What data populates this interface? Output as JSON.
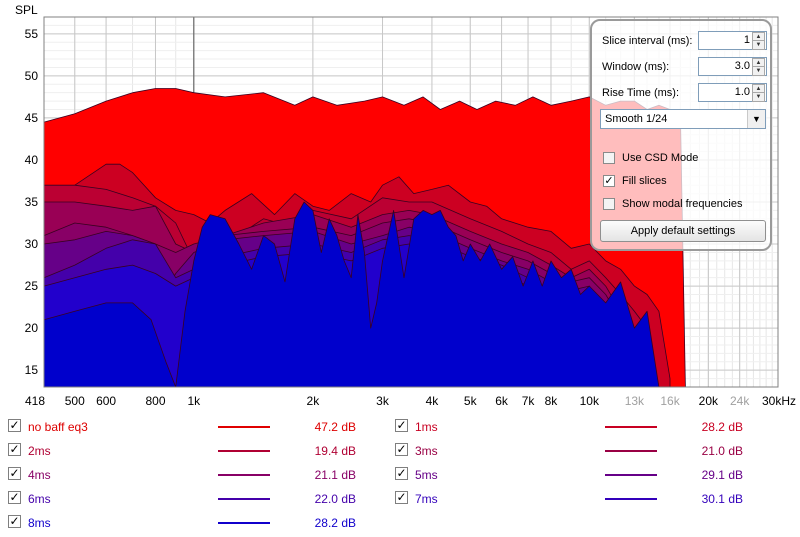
{
  "chart_data": {
    "type": "area",
    "ylabel": "SPL",
    "ylim": [
      13,
      57
    ],
    "yticks": [
      15,
      20,
      25,
      30,
      35,
      40,
      45,
      50,
      55
    ],
    "xlim": [
      418,
      30000
    ],
    "x_scale": "log",
    "xticks": [
      {
        "v": 418,
        "label": "418",
        "major": true
      },
      {
        "v": 500,
        "label": "500",
        "major": true
      },
      {
        "v": 600,
        "label": "600",
        "major": true
      },
      {
        "v": 800,
        "label": "800",
        "major": true
      },
      {
        "v": 1000,
        "label": "1k",
        "major": true
      },
      {
        "v": 2000,
        "label": "2k",
        "major": true
      },
      {
        "v": 3000,
        "label": "3k",
        "major": true
      },
      {
        "v": 4000,
        "label": "4k",
        "major": true
      },
      {
        "v": 5000,
        "label": "5k",
        "major": true
      },
      {
        "v": 6000,
        "label": "6k",
        "major": true
      },
      {
        "v": 7000,
        "label": "7k",
        "major": true
      },
      {
        "v": 8000,
        "label": "8k",
        "major": true
      },
      {
        "v": 10000,
        "label": "10k",
        "major": true
      },
      {
        "v": 13000,
        "label": "13k",
        "major": false
      },
      {
        "v": 16000,
        "label": "16k",
        "major": false
      },
      {
        "v": 20000,
        "label": "20k",
        "major": true
      },
      {
        "v": 24000,
        "label": "24k",
        "major": false
      },
      {
        "v": 30000,
        "label": "30kHz",
        "major": true
      }
    ],
    "grid": true,
    "series": [
      {
        "name": "no baff eq3",
        "color": "#ff0000",
        "x": [
          418,
          500,
          600,
          700,
          800,
          900,
          1000,
          1200,
          1500,
          1800,
          2000,
          2300,
          2700,
          3000,
          3400,
          3800,
          4200,
          4700,
          5200,
          5800,
          6500,
          7200,
          8000,
          9000,
          10000,
          11000,
          12000,
          13000,
          14000,
          15000,
          16000,
          17000,
          17500
        ],
        "y": [
          44.5,
          45.5,
          47,
          48,
          48.5,
          48.5,
          48,
          47.5,
          48,
          46.5,
          47.5,
          46.5,
          47,
          47.5,
          46.5,
          47.5,
          46,
          47,
          46,
          47,
          46.5,
          47.5,
          46.5,
          47,
          47.5,
          46.5,
          47,
          47,
          46,
          46.5,
          46,
          45.5,
          13
        ]
      },
      {
        "name": "1ms",
        "color": "#cc0022",
        "x": [
          418,
          500,
          600,
          650,
          700,
          800,
          900,
          1000,
          1100,
          1200,
          1400,
          1600,
          1800,
          2000,
          2200,
          2500,
          2800,
          3000,
          3300,
          3600,
          4000,
          4400,
          5000,
          5500,
          6000,
          7000,
          8000,
          9000,
          10000,
          11000,
          12000,
          13000,
          14000,
          15000,
          16000
        ],
        "y": [
          36,
          37,
          39.5,
          39.5,
          38.5,
          35.5,
          34,
          33.5,
          32.5,
          34,
          36,
          33.5,
          36,
          34.5,
          34,
          36,
          35,
          37,
          38,
          36,
          36.5,
          37,
          35,
          34.5,
          33,
          32,
          31.5,
          29.5,
          30,
          28,
          27,
          25,
          24,
          22,
          14
        ]
      },
      {
        "name": "2ms",
        "color": "#bb0033",
        "x": [
          418,
          500,
          600,
          700,
          800,
          900,
          1000,
          1200,
          1500,
          1800,
          2000,
          2500,
          3000,
          3500,
          4000,
          5000,
          6000,
          7000,
          8000,
          9000,
          10000,
          11000,
          12000,
          13000,
          14000,
          15000
        ],
        "y": [
          37,
          37,
          36.5,
          35.5,
          34.5,
          32.5,
          28,
          30,
          33,
          32,
          34,
          33,
          35.5,
          35,
          35,
          33,
          31.5,
          30,
          29,
          27,
          28,
          26,
          24,
          22,
          20,
          13
        ]
      },
      {
        "name": "3ms",
        "color": "#990055",
        "x": [
          418,
          500,
          600,
          700,
          800,
          900,
          1000,
          1200,
          1500,
          2000,
          2500,
          3000,
          3500,
          4000,
          5000,
          6000,
          7000,
          8000,
          9000,
          10000,
          11000,
          12000,
          13000,
          14000
        ],
        "y": [
          35,
          35,
          34.5,
          34,
          34.5,
          30,
          29,
          31,
          32.5,
          33.5,
          32,
          33.5,
          34,
          33.5,
          31.5,
          30,
          29,
          27.5,
          26,
          27,
          25,
          22,
          20,
          13
        ]
      },
      {
        "name": "4ms",
        "color": "#880066",
        "x": [
          418,
          500,
          600,
          700,
          800,
          900,
          1000,
          1200,
          1500,
          2000,
          2500,
          3000,
          3500,
          4000,
          5000,
          6000,
          7000,
          8000,
          9000,
          10000,
          11000,
          12000,
          13000
        ],
        "y": [
          31,
          32.5,
          32,
          31,
          30,
          29,
          30,
          31,
          31.5,
          32,
          31,
          32.5,
          33,
          32.5,
          30.5,
          29,
          28,
          26.5,
          25.5,
          26,
          24,
          21,
          13
        ]
      },
      {
        "name": "5ms",
        "color": "#660088",
        "x": [
          418,
          500,
          600,
          700,
          800,
          850,
          900,
          1000,
          1200,
          1500,
          2000,
          2500,
          3000,
          3500,
          4000,
          5000,
          6000,
          7000,
          8000,
          9000,
          10000,
          11000,
          12000
        ],
        "y": [
          30,
          30.5,
          31.5,
          31,
          30,
          24.5,
          26.5,
          29,
          30.5,
          31,
          31.5,
          30,
          31,
          32,
          31.5,
          29.5,
          28,
          27,
          25.5,
          24.5,
          25,
          22,
          13
        ]
      },
      {
        "name": "6ms",
        "color": "#4400aa",
        "x": [
          418,
          500,
          600,
          700,
          800,
          900,
          1000,
          1200,
          1500,
          2000,
          2500,
          3000,
          3500,
          4000,
          5000,
          6000,
          7000,
          8000,
          9000,
          10000,
          11000
        ],
        "y": [
          26,
          27.5,
          29.5,
          30.5,
          30,
          26,
          27,
          28.5,
          29.5,
          30,
          29,
          30.5,
          31,
          30.5,
          28.5,
          27.5,
          26,
          24.5,
          23,
          21,
          13
        ]
      },
      {
        "name": "7ms",
        "color": "#2200cc",
        "x": [
          418,
          500,
          600,
          700,
          800,
          900,
          1000,
          1200,
          1500,
          2000,
          2500,
          3000,
          3500,
          4000,
          5000,
          6000,
          7000,
          8000,
          9000,
          10000
        ],
        "y": [
          25,
          26,
          27,
          27.5,
          26.5,
          25,
          26,
          27.5,
          28.5,
          29,
          28,
          29.5,
          30,
          29.5,
          27.5,
          26.5,
          25,
          23.5,
          22,
          13
        ]
      },
      {
        "name": "8ms",
        "color": "#0000cc",
        "x": [
          418,
          500,
          600,
          700,
          780,
          850,
          900,
          950,
          1000,
          1050,
          1100,
          1200,
          1300,
          1400,
          1500,
          1600,
          1700,
          1800,
          1900,
          2000,
          2100,
          2200,
          2300,
          2400,
          2500,
          2600,
          2700,
          2800,
          2900,
          3000,
          3200,
          3400,
          3600,
          3800,
          4000,
          4200,
          4400,
          4600,
          4800,
          5000,
          5300,
          5600,
          6000,
          6400,
          6800,
          7200,
          7600,
          8000,
          8500,
          9000,
          9500,
          10000,
          11000,
          12000,
          13000,
          14000,
          15000
        ],
        "y": [
          21,
          22,
          23,
          23,
          21,
          16,
          13,
          22,
          28,
          32,
          33.5,
          33,
          30,
          27,
          31,
          30,
          25.5,
          33,
          35,
          34,
          29,
          33,
          31,
          28,
          26,
          33.5,
          29,
          20,
          23,
          28,
          34,
          26,
          33,
          34,
          33.5,
          34,
          32,
          31,
          28,
          30,
          28,
          30,
          27,
          28.5,
          25,
          28,
          25,
          28,
          26,
          27,
          24,
          25,
          23,
          25.5,
          20,
          22,
          13
        ]
      }
    ]
  },
  "controls": {
    "slice_interval_label": "Slice interval (ms):",
    "slice_interval_value": "1",
    "window_label": "Window (ms):",
    "window_value": "3.0",
    "rise_time_label": "Rise Time (ms):",
    "rise_time_value": "1.0",
    "smoothing_selected": "Smooth 1/24",
    "use_csd_mode_label": "Use CSD Mode",
    "use_csd_mode_checked": false,
    "fill_slices_label": "Fill slices",
    "fill_slices_checked": true,
    "show_modal_label": "Show modal frequencies",
    "show_modal_checked": false,
    "apply_default_label": "Apply default settings"
  },
  "legend": [
    {
      "name": "no baff eq3",
      "value": "47.2 dB",
      "color": "#e00000",
      "text_color": "#dd0000",
      "checked": true
    },
    {
      "name": "1ms",
      "value": "28.2 dB",
      "color": "#c80022",
      "text_color": "#c80022",
      "checked": true
    },
    {
      "name": "2ms",
      "value": "19.4 dB",
      "color": "#b00033",
      "text_color": "#b00033",
      "checked": true
    },
    {
      "name": "3ms",
      "value": "21.0 dB",
      "color": "#990044",
      "text_color": "#990044",
      "checked": true
    },
    {
      "name": "4ms",
      "value": "21.1 dB",
      "color": "#880066",
      "text_color": "#880066",
      "checked": true
    },
    {
      "name": "5ms",
      "value": "29.1 dB",
      "color": "#660088",
      "text_color": "#660088",
      "checked": true
    },
    {
      "name": "6ms",
      "value": "22.0 dB",
      "color": "#4400aa",
      "text_color": "#4400aa",
      "checked": true
    },
    {
      "name": "7ms",
      "value": "30.1 dB",
      "color": "#3300bb",
      "text_color": "#3300bb",
      "checked": true
    },
    {
      "name": "8ms",
      "value": "28.2 dB",
      "color": "#1100cc",
      "text_color": "#1100cc",
      "checked": true
    }
  ]
}
